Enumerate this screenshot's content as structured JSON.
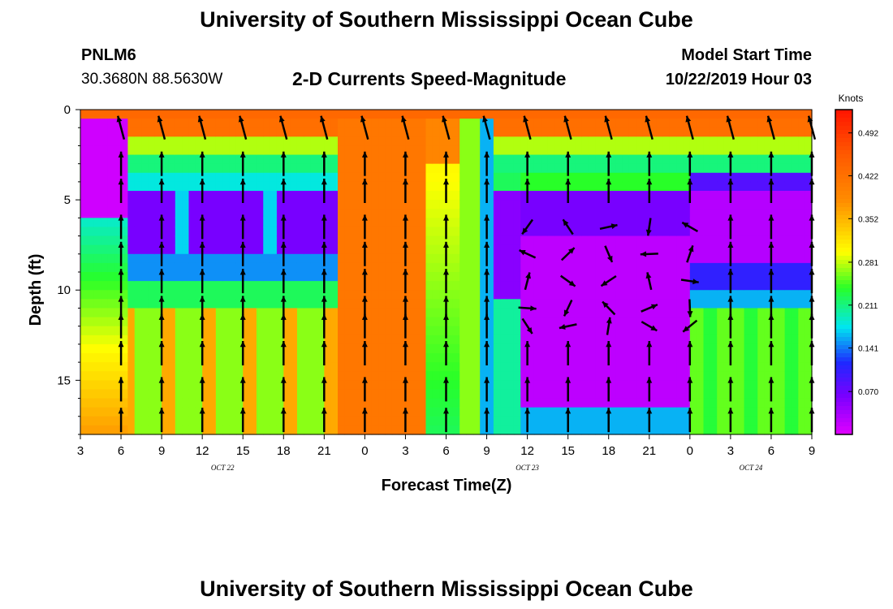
{
  "header": {
    "title": "University of Southern Mississippi Ocean Cube",
    "station_id": "PNLM6",
    "coords": "30.3680N 88.5630W",
    "chart_subtitle": "2-D Currents Speed-Magnitude",
    "model_start_label": "Model Start Time",
    "model_start_value": "10/22/2019 Hour 03"
  },
  "footer": {
    "title": "University of Southern Mississippi Ocean Cube"
  },
  "chart_data": {
    "type": "heatmap",
    "title": "2-D Currents Speed-Magnitude",
    "xlabel": "Forecast Time(Z)",
    "ylabel": "Depth (ft)",
    "x_ticks": [
      "3",
      "6",
      "9",
      "12",
      "15",
      "18",
      "21",
      "0",
      "3",
      "6",
      "9",
      "12",
      "15",
      "18",
      "21",
      "0",
      "3",
      "6",
      "9"
    ],
    "date_labels": [
      {
        "text": "OCT 22",
        "hour_index": 3.5
      },
      {
        "text": "OCT 23",
        "hour_index": 11
      },
      {
        "text": "OCT 24",
        "hour_index": 16.5
      }
    ],
    "y_ticks": [
      "0",
      "5",
      "10",
      "15"
    ],
    "ylim": [
      0,
      18
    ],
    "xlim_hours": [
      0,
      54
    ],
    "colorbar": {
      "unit": "Knots",
      "ticks": [
        "0.492",
        "0.422",
        "0.352",
        "0.281",
        "0.211",
        "0.141",
        "0.070"
      ],
      "range": [
        0,
        0.53
      ]
    },
    "arrow_cols_hours": [
      3,
      6,
      9,
      12,
      15,
      18,
      21,
      24,
      27,
      30,
      33,
      36,
      39,
      42,
      45,
      48,
      51,
      54
    ],
    "arrow_rows_depth": [
      1,
      3,
      4.5,
      6.5,
      8,
      9.5,
      11,
      12,
      13.5,
      15.5,
      17.2
    ],
    "colors": {
      "purple": "#c000ff",
      "blue": "#2040ff",
      "cyan": "#00f0f0",
      "green": "#30ff30",
      "yellow": "#ffff00",
      "orange": "#ff8000",
      "red": "#ff2000"
    }
  }
}
